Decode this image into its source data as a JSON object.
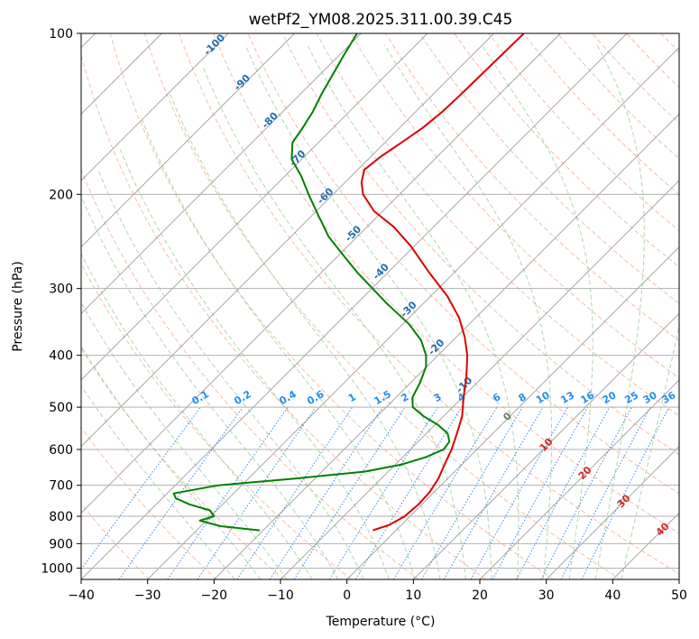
{
  "chart_data": {
    "type": "line",
    "title": "wetPf2_YM08.2025.311.00.39.C45",
    "xlabel": "Temperature (°C)",
    "ylabel": "Pressure (hPa)",
    "xlim": [
      -40,
      50
    ],
    "ylim": [
      1050,
      100
    ],
    "y_scale": "log",
    "x_ticks": [
      -40,
      -30,
      -20,
      -10,
      0,
      10,
      20,
      30,
      40,
      50
    ],
    "y_ticks": [
      100,
      200,
      300,
      400,
      500,
      600,
      700,
      800,
      900,
      1000
    ],
    "grid": true,
    "skew_degrees": 45,
    "series": [
      {
        "color": "#dd0000",
        "p": [
          850,
          830,
          800,
          760,
          720,
          680,
          640,
          600,
          560,
          520,
          480,
          440,
          400,
          370,
          340,
          310,
          280,
          250,
          230,
          215,
          200,
          190,
          180,
          170,
          160,
          150,
          140,
          130,
          120,
          110,
          100
        ],
        "t": [
          -3.5,
          -1.8,
          -0.8,
          -0.5,
          -0.7,
          -1.4,
          -2.6,
          -3.8,
          -5.4,
          -7.2,
          -9.8,
          -12.4,
          -15.6,
          -18.7,
          -22.5,
          -27.5,
          -33.8,
          -40.5,
          -46.0,
          -51.3,
          -55.5,
          -57.5,
          -59.0,
          -58.5,
          -57.5,
          -56.5,
          -56.0,
          -55.8,
          -55.7,
          -55.6,
          -55.5
        ]
      },
      {
        "color": "#008000",
        "p": [
          850,
          835,
          815,
          800,
          780,
          760,
          740,
          725,
          700,
          680,
          660,
          640,
          620,
          600,
          580,
          560,
          540,
          520,
          500,
          480,
          450,
          420,
          400,
          375,
          350,
          320,
          300,
          280,
          260,
          240,
          220,
          200,
          185,
          172,
          160,
          150,
          140,
          130,
          120,
          110,
          100
        ],
        "t": [
          -20.5,
          -27.0,
          -31.0,
          -29.5,
          -31.0,
          -35.0,
          -38.0,
          -39.0,
          -33.5,
          -23.0,
          -13.5,
          -9.0,
          -6.5,
          -5.0,
          -5.3,
          -6.8,
          -9.5,
          -13.0,
          -16.0,
          -17.5,
          -18.6,
          -20.1,
          -21.8,
          -24.8,
          -29.0,
          -35.5,
          -39.9,
          -44.6,
          -49.3,
          -54.3,
          -58.8,
          -63.7,
          -67.5,
          -71.5,
          -73.9,
          -74.6,
          -75.5,
          -76.8,
          -78.0,
          -79.3,
          -80.6
        ]
      }
    ],
    "dry_adiabats_c": [
      -100,
      -90,
      -80,
      -70,
      -60,
      -50,
      -40,
      -30,
      -20,
      -10
    ],
    "moist_adiabats_c": [
      0,
      10,
      20,
      30,
      40
    ],
    "mixing_ratio_labels": [
      "0.1",
      "0.2",
      "0.4",
      "0.6",
      "1",
      "1.5",
      "2",
      "3",
      "4",
      "6",
      "8",
      "10",
      "13",
      "16",
      "20",
      "25",
      "30",
      "36"
    ],
    "mixing_ratio_values": [
      0.1,
      0.2,
      0.4,
      0.6,
      1,
      1.5,
      2,
      3,
      4,
      6,
      8,
      10,
      13,
      16,
      20,
      25,
      30,
      36
    ],
    "colors": {
      "temperature": "#dd0000",
      "dewpoint": "#008000",
      "dry_adiabat": "#f4a58a",
      "moist_adiabat": "#9acd9a",
      "mixing_ratio": "#3b8ee0",
      "isotherm": "#8c8c8c",
      "isobar": "#b0b0b0",
      "dry_label": "#1f6fad",
      "moist_label": "#d62728",
      "mixing_label": "#1e8ff0"
    }
  }
}
